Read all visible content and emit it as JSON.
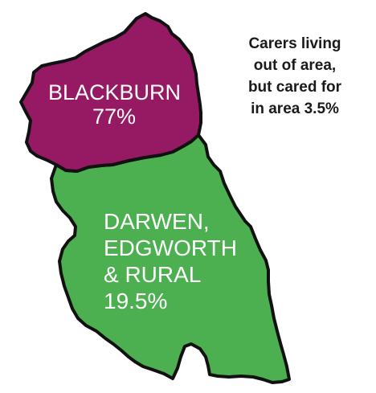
{
  "map": {
    "regions": [
      {
        "name_lines": [
          "BLACKBURN"
        ],
        "share": "77%",
        "fill": "#951A63"
      },
      {
        "name_lines": [
          "DARWEN,",
          "EDGWORTH",
          "& RURAL"
        ],
        "share": "19.5%",
        "fill": "#4CAF50"
      }
    ],
    "outline_color": "#111111",
    "note": {
      "lines": [
        "Carers living",
        "out of area,",
        "but cared for",
        "in area 3.5%"
      ]
    }
  }
}
